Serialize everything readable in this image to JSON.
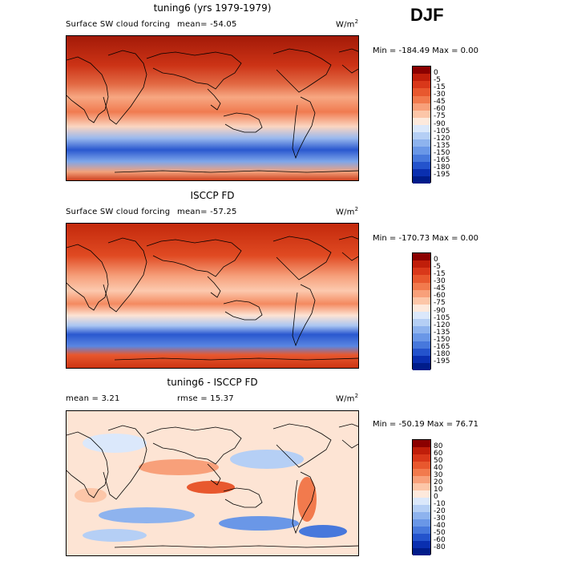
{
  "season": "DJF",
  "panels": [
    {
      "title": "tuning6 (yrs 1979-1979)",
      "variable": "Surface SW cloud forcing",
      "mean_text": "mean=  -54.05",
      "units": "W/m",
      "units_sup": "2",
      "minmax": "Min = -184.49 Max =    0.00"
    },
    {
      "title": "ISCCP FD",
      "variable": "Surface SW cloud forcing",
      "mean_text": "mean=  -57.25",
      "units": "W/m",
      "units_sup": "2",
      "minmax": "Min = -170.73 Max =    0.00"
    },
    {
      "title": "tuning6 - ISCCP FD",
      "mean_text": "mean =    3.21",
      "rmse_text": "rmse =   15.37",
      "units": "W/m",
      "units_sup": "2",
      "minmax": "Min = -50.19 Max =  76.71"
    }
  ],
  "colorbar_fields": {
    "labels": [
      "0",
      "-5",
      "-15",
      "-30",
      "-45",
      "-60",
      "-75",
      "-90",
      "-105",
      "-120",
      "-135",
      "-150",
      "-165",
      "-180",
      "-195"
    ],
    "colors": [
      "#8b0000",
      "#c01e0a",
      "#d9381a",
      "#e8582e",
      "#f27a4d",
      "#f8a07a",
      "#fcc6a8",
      "#fde9dc",
      "#dbe8fb",
      "#b5cff5",
      "#8eb3ee",
      "#6a97e7",
      "#4778dc",
      "#2453cc",
      "#0a2fb0",
      "#001c8a"
    ]
  },
  "colorbar_diff": {
    "labels": [
      "80",
      "60",
      "50",
      "40",
      "30",
      "20",
      "10",
      "0",
      "-10",
      "-20",
      "-30",
      "-40",
      "-50",
      "-60",
      "-80"
    ],
    "colors": [
      "#8b0000",
      "#c01e0a",
      "#d9381a",
      "#e8582e",
      "#f27a4d",
      "#f8a07a",
      "#fcc6a8",
      "#fde9dc",
      "#dbe8fb",
      "#b5cff5",
      "#8eb3ee",
      "#6a97e7",
      "#4778dc",
      "#2453cc",
      "#0a2fb0",
      "#001c8a"
    ]
  },
  "chart_data": [
    {
      "type": "heatmap",
      "title": "tuning6 (yrs 1979-1979)",
      "variable": "Surface SW cloud forcing",
      "units": "W/m2",
      "mean": -54.05,
      "min": -184.49,
      "max": 0.0,
      "contour_levels": [
        0,
        -5,
        -15,
        -30,
        -45,
        -60,
        -75,
        -90,
        -105,
        -120,
        -135,
        -150,
        -165,
        -180,
        -195
      ]
    },
    {
      "type": "heatmap",
      "title": "ISCCP FD",
      "variable": "Surface SW cloud forcing",
      "units": "W/m2",
      "mean": -57.25,
      "min": -170.73,
      "max": 0.0,
      "contour_levels": [
        0,
        -5,
        -15,
        -30,
        -45,
        -60,
        -75,
        -90,
        -105,
        -120,
        -135,
        -150,
        -165,
        -180,
        -195
      ]
    },
    {
      "type": "heatmap",
      "title": "tuning6 - ISCCP FD",
      "units": "W/m2",
      "mean": 3.21,
      "rmse": 15.37,
      "min": -50.19,
      "max": 76.71,
      "contour_levels": [
        80,
        60,
        50,
        40,
        30,
        20,
        10,
        0,
        -10,
        -20,
        -30,
        -40,
        -50,
        -60,
        -80
      ]
    }
  ]
}
